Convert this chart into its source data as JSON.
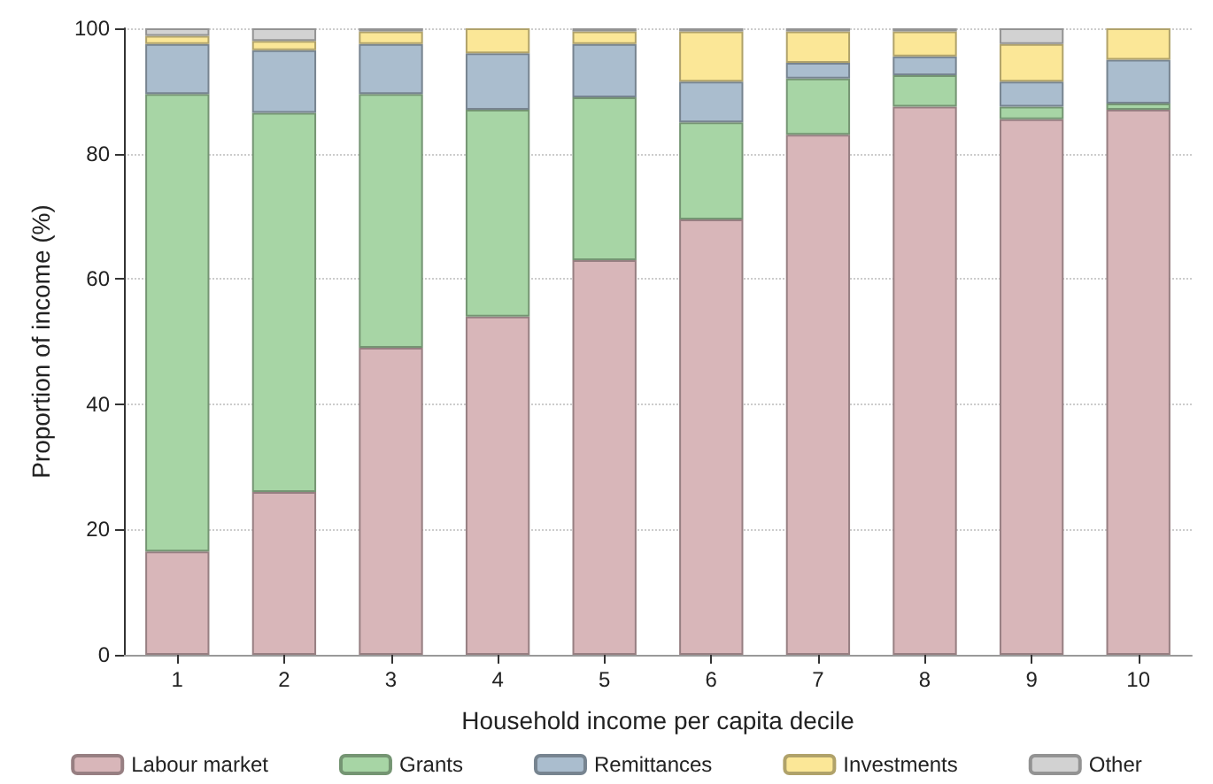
{
  "chart_data": {
    "type": "bar",
    "stacked": true,
    "xlabel": "Household income per capita decile",
    "ylabel": "Proportion of income (%)",
    "categories": [
      "1",
      "2",
      "3",
      "4",
      "5",
      "6",
      "7",
      "8",
      "9",
      "10"
    ],
    "series": [
      {
        "name": "Labour market",
        "color": "#d8b6b9",
        "values": [
          16.5,
          26,
          49,
          54,
          63,
          69.5,
          83,
          87.5,
          85.5,
          87
        ]
      },
      {
        "name": "Grants",
        "color": "#a7d5a5",
        "values": [
          73,
          60.5,
          40.5,
          33,
          26,
          15.5,
          9,
          5,
          2,
          1
        ]
      },
      {
        "name": "Remittances",
        "color": "#aabdce",
        "values": [
          8,
          10,
          8,
          9,
          8.5,
          6.5,
          2.5,
          3,
          4,
          7
        ]
      },
      {
        "name": "Investments",
        "color": "#fbe797",
        "values": [
          1.3,
          1.5,
          2,
          4,
          2,
          8,
          5,
          4,
          6,
          5
        ]
      },
      {
        "name": "Other",
        "color": "#d2d2d2",
        "values": [
          1.2,
          2,
          0.5,
          0,
          0.5,
          0.5,
          0.5,
          0.5,
          2.5,
          0
        ]
      }
    ],
    "ylim": [
      0,
      100
    ],
    "yticks": [
      0,
      20,
      40,
      60,
      80,
      100
    ],
    "grid": "y",
    "legend": "bottom"
  }
}
